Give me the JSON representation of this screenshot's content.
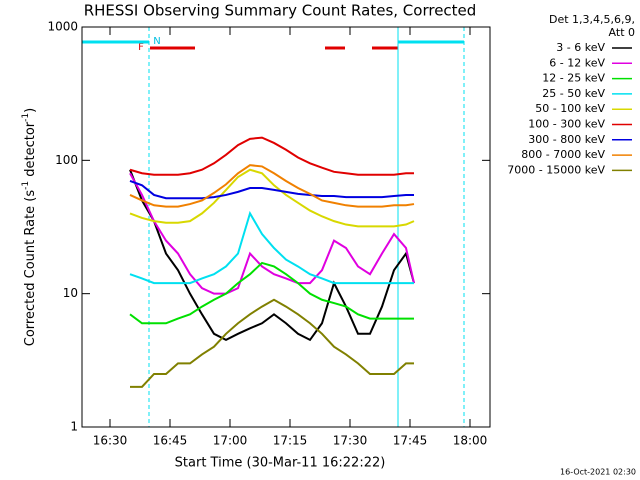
{
  "chart_data": {
    "type": "line",
    "title": "RHESSI Observing Summary Count Rates, Corrected",
    "xlabel": "Start Time (30-Mar-11 16:22:22)",
    "ylabel": [
      "Corrected Count Rate (s",
      "-1",
      " detector",
      "-1",
      ")"
    ],
    "legend_header": [
      "Det 1,3,4,5,6,9,",
      "Att 0"
    ],
    "footer": "16-Oct-2021 02:30",
    "annotations": [
      "F",
      "N"
    ],
    "log_y": true,
    "xlim": [
      "16:23",
      "18:05"
    ],
    "xticks": [
      "16:30",
      "16:45",
      "17:00",
      "17:15",
      "17:30",
      "17:45",
      "18:00"
    ],
    "ylim": [
      1,
      1000
    ],
    "yticks": [
      1,
      10,
      100,
      1000
    ],
    "x": [
      "16:35",
      "16:38",
      "16:41",
      "16:44",
      "16:47",
      "16:50",
      "16:53",
      "16:56",
      "16:59",
      "17:02",
      "17:05",
      "17:08",
      "17:11",
      "17:14",
      "17:17",
      "17:20",
      "17:23",
      "17:26",
      "17:29",
      "17:32",
      "17:35",
      "17:38",
      "17:41",
      "17:44",
      "17:46"
    ],
    "series": [
      {
        "name": "3 - 6 keV",
        "color": "#000000",
        "values": [
          85,
          50,
          35,
          20,
          15,
          10,
          7,
          5,
          4.5,
          5,
          5.5,
          6,
          7,
          6,
          5,
          4.5,
          6,
          12,
          8,
          5,
          5,
          8,
          15,
          20,
          12
        ]
      },
      {
        "name": "6 - 12 keV",
        "color": "#e000e0",
        "values": [
          80,
          55,
          35,
          25,
          20,
          14,
          11,
          10,
          10,
          11,
          20,
          16,
          14,
          13,
          12,
          12,
          15,
          25,
          22,
          16,
          14,
          20,
          28,
          22,
          12
        ]
      },
      {
        "name": "12 - 25 keV",
        "color": "#00e000",
        "values": [
          7,
          6,
          6,
          6,
          6.5,
          7,
          8,
          9,
          10,
          12,
          14,
          17,
          16,
          14,
          12,
          10,
          9,
          8.5,
          8,
          7,
          6.5,
          6.5,
          6.5,
          6.5,
          6.5
        ]
      },
      {
        "name": "25 - 50 keV",
        "color": "#00e0f0",
        "values": [
          14,
          13,
          12,
          12,
          12,
          12,
          13,
          14,
          16,
          20,
          40,
          28,
          22,
          18,
          16,
          14,
          13,
          12,
          12,
          12,
          12,
          12,
          12,
          12,
          12
        ]
      },
      {
        "name": "50 - 100 keV",
        "color": "#d8d800",
        "values": [
          40,
          37,
          35,
          34,
          34,
          35,
          40,
          48,
          60,
          75,
          85,
          80,
          65,
          55,
          48,
          42,
          38,
          35,
          33,
          32,
          32,
          32,
          32,
          33,
          35
        ]
      },
      {
        "name": "100 - 300 keV",
        "color": "#e00000",
        "values": [
          85,
          80,
          78,
          78,
          78,
          80,
          85,
          95,
          110,
          130,
          145,
          148,
          135,
          120,
          105,
          95,
          88,
          82,
          80,
          78,
          78,
          78,
          78,
          80,
          80
        ]
      },
      {
        "name": "300 - 800 keV",
        "color": "#0000e0",
        "values": [
          70,
          65,
          55,
          52,
          52,
          52,
          52,
          53,
          55,
          58,
          62,
          62,
          60,
          58,
          56,
          55,
          54,
          54,
          53,
          53,
          53,
          53,
          54,
          55,
          55
        ]
      },
      {
        "name": "800 - 7000 keV",
        "color": "#f08000",
        "values": [
          55,
          50,
          46,
          45,
          45,
          47,
          50,
          57,
          66,
          80,
          92,
          90,
          80,
          70,
          62,
          56,
          50,
          48,
          46,
          45,
          45,
          45,
          46,
          46,
          47
        ]
      },
      {
        "name": "7000 - 15000 keV",
        "color": "#808000",
        "values": [
          2,
          2,
          2.5,
          2.5,
          3,
          3,
          3.5,
          4,
          5,
          6,
          7,
          8,
          9,
          8,
          7,
          6,
          5,
          4,
          3.5,
          3,
          2.5,
          2.5,
          2.5,
          3,
          3
        ]
      }
    ]
  }
}
